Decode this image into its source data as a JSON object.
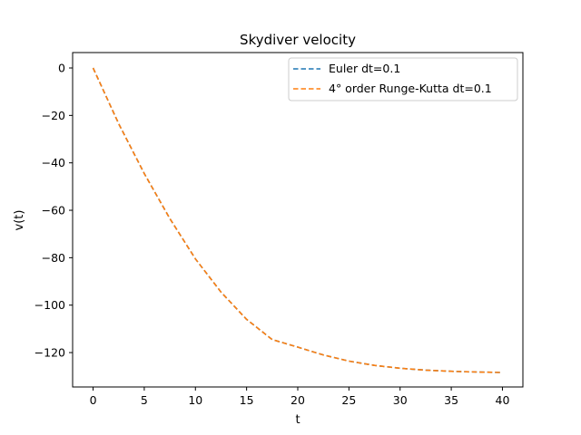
{
  "chart_data": {
    "type": "line",
    "title": "Skydiver velocity",
    "xlabel": "t",
    "ylabel": "v(t)",
    "xlim": [
      -2,
      42
    ],
    "ylim": [
      -134.5,
      6.5
    ],
    "x_ticks": [
      0,
      5,
      10,
      15,
      20,
      25,
      30,
      35,
      40
    ],
    "y_ticks": [
      0,
      -20,
      -40,
      -60,
      -80,
      -100,
      -120
    ],
    "y_tick_labels": [
      "0",
      "−20",
      "−40",
      "−60",
      "−80",
      "−100",
      "−120"
    ],
    "grid": false,
    "legend_position": "top-right",
    "x": [
      0,
      2.5,
      5,
      7.5,
      10,
      12.5,
      15,
      17.5,
      20,
      22.5,
      25,
      27.5,
      30,
      32.5,
      35,
      37.5,
      40
    ],
    "series": [
      {
        "name": "Euler dt=0.1",
        "color": "#1f77b4",
        "style": "dashed",
        "values": [
          0,
          -23.5,
          -44.5,
          -63.5,
          -80.5,
          -94.5,
          -106,
          -114.5,
          -117.7,
          -121,
          -123.6,
          -125.4,
          -126.6,
          -127.4,
          -127.9,
          -128.2,
          -128.4
        ]
      },
      {
        "name": "4° order Runge-Kutta dt=0.1",
        "color": "#ff7f0e",
        "style": "dashed",
        "values": [
          0,
          -23.5,
          -44.5,
          -63.5,
          -80.5,
          -94.5,
          -106,
          -114.5,
          -117.7,
          -121,
          -123.6,
          -125.4,
          -126.6,
          -127.4,
          -127.9,
          -128.2,
          -128.4
        ]
      }
    ]
  }
}
